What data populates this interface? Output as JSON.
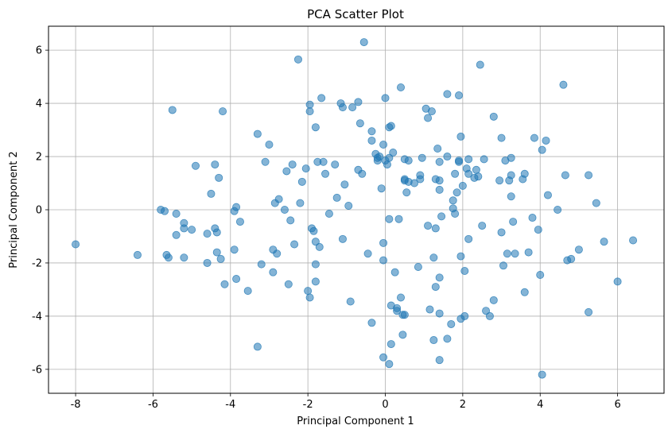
{
  "chart_data": {
    "type": "scatter",
    "title": "PCA Scatter Plot",
    "xlabel": "Principal Component 1",
    "ylabel": "Principal Component 2",
    "xlim": [
      -8.7,
      7.2
    ],
    "ylim": [
      -6.9,
      6.9
    ],
    "xticks": [
      -8,
      -6,
      -4,
      -2,
      0,
      2,
      4,
      6
    ],
    "yticks": [
      -6,
      -4,
      -2,
      0,
      2,
      4,
      6
    ],
    "grid": true,
    "marker_color": "#1f77b4",
    "marker_alpha": 0.55,
    "points": [
      [
        -8.0,
        -1.3
      ],
      [
        -6.4,
        -1.7
      ],
      [
        -5.8,
        0.0
      ],
      [
        -5.7,
        -0.05
      ],
      [
        -5.65,
        -1.7
      ],
      [
        -5.6,
        -1.8
      ],
      [
        -5.4,
        -0.15
      ],
      [
        -5.5,
        3.75
      ],
      [
        -5.4,
        -0.95
      ],
      [
        -5.2,
        -0.5
      ],
      [
        -5.2,
        -0.7
      ],
      [
        -5.2,
        -1.8
      ],
      [
        -5.0,
        -0.75
      ],
      [
        -4.9,
        1.65
      ],
      [
        -4.6,
        -2.0
      ],
      [
        -4.6,
        -0.9
      ],
      [
        -4.5,
        0.6
      ],
      [
        -4.4,
        1.7
      ],
      [
        -4.4,
        -0.7
      ],
      [
        -4.35,
        -0.85
      ],
      [
        -4.3,
        1.2
      ],
      [
        -4.35,
        -1.6
      ],
      [
        -4.25,
        -1.85
      ],
      [
        -4.2,
        3.7
      ],
      [
        -4.15,
        -2.8
      ],
      [
        -3.9,
        -0.05
      ],
      [
        -3.9,
        -1.5
      ],
      [
        -3.85,
        0.1
      ],
      [
        -3.85,
        -2.6
      ],
      [
        -3.75,
        -0.45
      ],
      [
        -3.55,
        -3.05
      ],
      [
        -3.3,
        -5.15
      ],
      [
        -3.3,
        2.85
      ],
      [
        -3.2,
        -2.05
      ],
      [
        -3.1,
        1.8
      ],
      [
        -3.0,
        2.45
      ],
      [
        -2.9,
        -2.35
      ],
      [
        -2.9,
        -1.5
      ],
      [
        -2.85,
        0.25
      ],
      [
        -2.8,
        -1.65
      ],
      [
        -2.75,
        0.4
      ],
      [
        -2.6,
        0.0
      ],
      [
        -2.55,
        1.45
      ],
      [
        -2.45,
        -0.4
      ],
      [
        -2.5,
        -2.8
      ],
      [
        -2.4,
        1.7
      ],
      [
        -2.35,
        -1.3
      ],
      [
        -2.25,
        5.65
      ],
      [
        -2.2,
        0.25
      ],
      [
        -2.15,
        1.05
      ],
      [
        -2.05,
        1.55
      ],
      [
        -2.0,
        -3.05
      ],
      [
        -1.95,
        3.95
      ],
      [
        -1.95,
        3.7
      ],
      [
        -1.95,
        -3.3
      ],
      [
        -1.9,
        -0.7
      ],
      [
        -1.85,
        -0.8
      ],
      [
        -1.8,
        3.1
      ],
      [
        -1.8,
        -1.2
      ],
      [
        -1.8,
        -2.05
      ],
      [
        -1.8,
        -2.7
      ],
      [
        -1.75,
        1.8
      ],
      [
        -1.7,
        -1.4
      ],
      [
        -1.65,
        4.2
      ],
      [
        -1.6,
        1.8
      ],
      [
        -1.55,
        1.35
      ],
      [
        -1.45,
        -0.15
      ],
      [
        -1.3,
        1.7
      ],
      [
        -1.25,
        0.45
      ],
      [
        -1.15,
        4.0
      ],
      [
        -1.1,
        -1.1
      ],
      [
        -1.1,
        3.85
      ],
      [
        -1.05,
        0.95
      ],
      [
        -0.95,
        0.15
      ],
      [
        -0.9,
        -3.45
      ],
      [
        -0.85,
        3.85
      ],
      [
        -0.7,
        1.5
      ],
      [
        -0.7,
        4.05
      ],
      [
        -0.65,
        3.25
      ],
      [
        -0.6,
        1.35
      ],
      [
        -0.55,
        6.3
      ],
      [
        -0.45,
        -1.65
      ],
      [
        -0.35,
        -4.25
      ],
      [
        -0.35,
        2.6
      ],
      [
        -0.35,
        2.95
      ],
      [
        -0.25,
        2.1
      ],
      [
        -0.2,
        1.95
      ],
      [
        -0.2,
        1.85
      ],
      [
        -0.15,
        2.0
      ],
      [
        -0.1,
        0.8
      ],
      [
        -0.05,
        2.45
      ],
      [
        -0.05,
        -1.25
      ],
      [
        -0.05,
        -1.9
      ],
      [
        -0.05,
        -5.55
      ],
      [
        0.0,
        4.2
      ],
      [
        0.0,
        1.85
      ],
      [
        0.05,
        1.7
      ],
      [
        0.1,
        1.95
      ],
      [
        0.1,
        3.1
      ],
      [
        0.15,
        3.15
      ],
      [
        0.1,
        -0.35
      ],
      [
        0.1,
        -5.8
      ],
      [
        0.15,
        -5.05
      ],
      [
        0.15,
        -3.6
      ],
      [
        0.2,
        2.15
      ],
      [
        0.25,
        -2.35
      ],
      [
        0.3,
        -3.7
      ],
      [
        0.3,
        -3.8
      ],
      [
        0.35,
        -0.35
      ],
      [
        0.4,
        -3.3
      ],
      [
        0.4,
        4.6
      ],
      [
        0.45,
        -3.95
      ],
      [
        0.5,
        -3.95
      ],
      [
        0.45,
        -4.7
      ],
      [
        0.5,
        1.15
      ],
      [
        0.5,
        1.1
      ],
      [
        0.5,
        1.9
      ],
      [
        0.55,
        0.65
      ],
      [
        0.6,
        1.05
      ],
      [
        0.6,
        1.85
      ],
      [
        0.75,
        1.0
      ],
      [
        0.85,
        -2.15
      ],
      [
        0.9,
        1.3
      ],
      [
        0.9,
        1.15
      ],
      [
        0.95,
        1.95
      ],
      [
        1.05,
        3.8
      ],
      [
        1.1,
        3.45
      ],
      [
        1.1,
        -0.6
      ],
      [
        1.15,
        -3.75
      ],
      [
        1.2,
        3.7
      ],
      [
        1.25,
        -1.8
      ],
      [
        1.25,
        -4.9
      ],
      [
        1.3,
        1.15
      ],
      [
        1.3,
        -2.9
      ],
      [
        1.3,
        -0.7
      ],
      [
        1.35,
        2.3
      ],
      [
        1.4,
        1.1
      ],
      [
        1.4,
        1.8
      ],
      [
        1.4,
        0.75
      ],
      [
        1.4,
        -2.55
      ],
      [
        1.4,
        -3.9
      ],
      [
        1.4,
        -5.65
      ],
      [
        1.45,
        -0.25
      ],
      [
        1.6,
        4.35
      ],
      [
        1.6,
        2.0
      ],
      [
        1.6,
        -4.85
      ],
      [
        1.7,
        -4.3
      ],
      [
        1.75,
        0.35
      ],
      [
        1.75,
        0.05
      ],
      [
        1.8,
        -0.15
      ],
      [
        1.8,
        1.35
      ],
      [
        1.85,
        0.65
      ],
      [
        1.9,
        1.85
      ],
      [
        1.9,
        1.8
      ],
      [
        1.9,
        4.3
      ],
      [
        1.95,
        2.75
      ],
      [
        1.95,
        -1.75
      ],
      [
        1.95,
        -4.1
      ],
      [
        2.0,
        0.9
      ],
      [
        2.05,
        -4.0
      ],
      [
        2.05,
        -2.3
      ],
      [
        2.1,
        1.55
      ],
      [
        2.15,
        1.9
      ],
      [
        2.15,
        -1.1
      ],
      [
        2.15,
        1.35
      ],
      [
        2.3,
        1.2
      ],
      [
        2.35,
        1.5
      ],
      [
        2.4,
        1.25
      ],
      [
        2.45,
        5.45
      ],
      [
        2.5,
        -0.6
      ],
      [
        2.55,
        1.9
      ],
      [
        2.6,
        -3.8
      ],
      [
        2.7,
        -4.0
      ],
      [
        2.8,
        3.5
      ],
      [
        2.8,
        -3.4
      ],
      [
        2.95,
        1.1
      ],
      [
        3.0,
        2.7
      ],
      [
        3.0,
        -0.85
      ],
      [
        3.05,
        -2.1
      ],
      [
        3.1,
        1.85
      ],
      [
        3.15,
        -1.65
      ],
      [
        3.2,
        1.1
      ],
      [
        3.25,
        1.95
      ],
      [
        3.25,
        1.3
      ],
      [
        3.25,
        0.5
      ],
      [
        3.3,
        -0.45
      ],
      [
        3.35,
        -1.65
      ],
      [
        3.55,
        1.15
      ],
      [
        3.6,
        1.35
      ],
      [
        3.6,
        -3.1
      ],
      [
        3.7,
        -1.6
      ],
      [
        3.8,
        -0.3
      ],
      [
        3.85,
        2.7
      ],
      [
        3.95,
        -0.75
      ],
      [
        4.0,
        -2.45
      ],
      [
        4.05,
        2.25
      ],
      [
        4.05,
        -6.2
      ],
      [
        4.15,
        2.6
      ],
      [
        4.2,
        0.55
      ],
      [
        4.45,
        0.0
      ],
      [
        4.6,
        4.7
      ],
      [
        4.65,
        1.3
      ],
      [
        4.7,
        -1.9
      ],
      [
        4.8,
        -1.85
      ],
      [
        5.0,
        -1.5
      ],
      [
        5.25,
        1.3
      ],
      [
        5.25,
        -3.85
      ],
      [
        5.45,
        0.25
      ],
      [
        5.65,
        -1.2
      ],
      [
        6.0,
        -2.7
      ],
      [
        6.4,
        -1.15
      ]
    ]
  }
}
